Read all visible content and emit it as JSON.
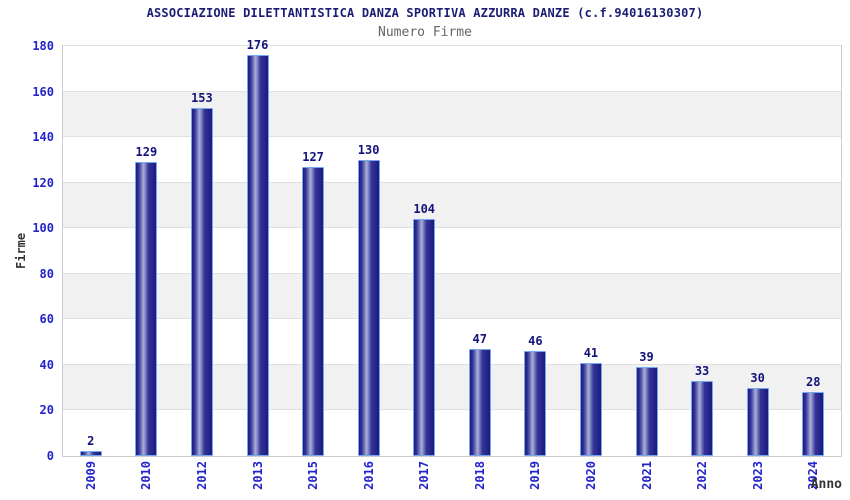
{
  "chart_data": {
    "type": "bar",
    "title": "ASSOCIAZIONE DILETTANTISTICA DANZA SPORTIVA AZZURRA DANZE (c.f.94016130307)",
    "subtitle": "Numero Firme",
    "xlabel": "Anno",
    "ylabel": "Firme",
    "categories": [
      "2009",
      "2010",
      "2012",
      "2013",
      "2015",
      "2016",
      "2017",
      "2018",
      "2019",
      "2020",
      "2021",
      "2022",
      "2023",
      "2024"
    ],
    "values": [
      2,
      129,
      153,
      176,
      127,
      130,
      104,
      47,
      46,
      41,
      39,
      33,
      30,
      28
    ],
    "ylim": [
      0,
      180
    ],
    "ytick_step": 20,
    "grid": "horizontal-alternating-bands",
    "legend": "none",
    "colors": {
      "bar_dark": "#1b1b7e",
      "bar_mid": "#34349a",
      "bar_highlight": "#aab0d8",
      "bar_border": "#74a7ee",
      "tick_label": "#2323cc",
      "value_label": "#12127a",
      "title": "#1c1c74",
      "subtitle": "#666666",
      "axis_label": "#333333",
      "band_alt": "#f1f1f1",
      "band_base": "#ffffff",
      "plot_border": "#cccccc",
      "gridline": "#e0e0e0"
    }
  }
}
